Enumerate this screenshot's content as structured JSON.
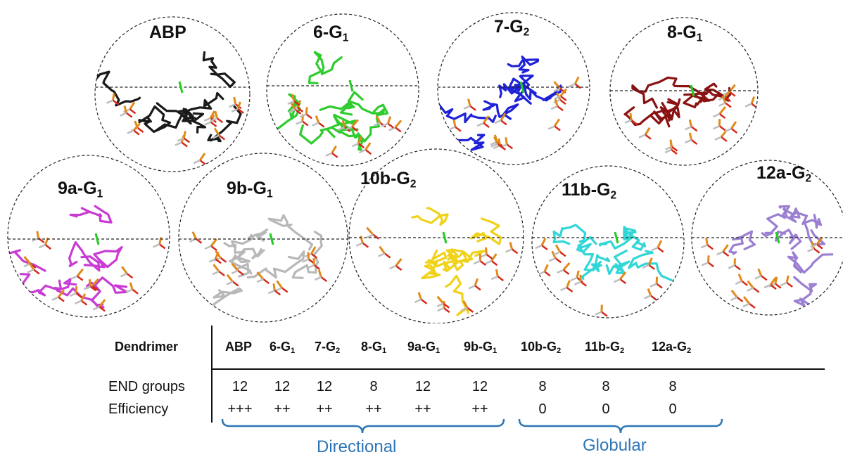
{
  "molecules": [
    {
      "id": "ABP",
      "name": "ABP",
      "sub": "",
      "color": "#1a1a1a"
    },
    {
      "id": "6",
      "name": "6-G",
      "sub": "1",
      "color": "#2ecc2e"
    },
    {
      "id": "7",
      "name": "7-G",
      "sub": "2",
      "color": "#1f22d6"
    },
    {
      "id": "8",
      "name": "8-G",
      "sub": "1",
      "color": "#8b1212"
    },
    {
      "id": "9a",
      "name": "9a-G",
      "sub": "1",
      "color": "#c83cd3"
    },
    {
      "id": "9b",
      "name": "9b-G",
      "sub": "1",
      "color": "#b8b8b8"
    },
    {
      "id": "10b",
      "name": "10b-G",
      "sub": "2",
      "color": "#f0d21a"
    },
    {
      "id": "11b",
      "name": "11b-G",
      "sub": "2",
      "color": "#33d6d6"
    },
    {
      "id": "12a",
      "name": "12a-G",
      "sub": "2",
      "color": "#9b7fd1"
    }
  ],
  "table": {
    "header_label": "Dendrimer",
    "columns": [
      {
        "name": "ABP",
        "sub": ""
      },
      {
        "name": "6-G",
        "sub": "1"
      },
      {
        "name": "7-G",
        "sub": "2"
      },
      {
        "name": "8-G",
        "sub": "1"
      },
      {
        "name": "9a-G",
        "sub": "1"
      },
      {
        "name": "9b-G",
        "sub": "1"
      },
      {
        "name": "10b-G",
        "sub": "2"
      },
      {
        "name": "11b-G",
        "sub": "2"
      },
      {
        "name": "12a-G",
        "sub": "2"
      }
    ],
    "rows": [
      {
        "label": "END groups",
        "values": [
          "12",
          "12",
          "12",
          "8",
          "12",
          "12",
          "8",
          "8",
          "8"
        ]
      },
      {
        "label": "Efficiency",
        "values": [
          "+++",
          "++",
          "++",
          "++",
          "++",
          "++",
          "0",
          "0",
          "0"
        ]
      }
    ]
  },
  "groups": [
    {
      "label": "Directional",
      "color": "#2e75b6"
    },
    {
      "label": "Globular",
      "color": "#2e75b6"
    }
  ]
}
